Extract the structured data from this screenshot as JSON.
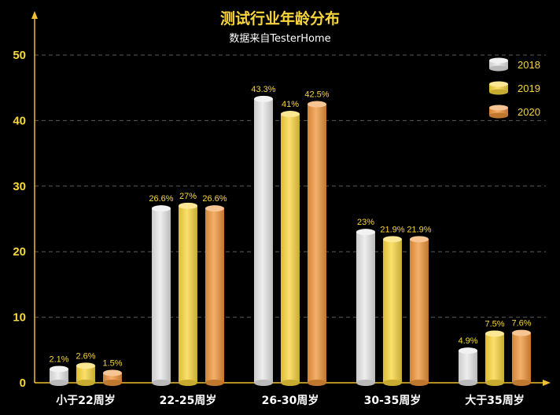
{
  "chart_data": {
    "type": "bar",
    "title": "测试行业年龄分布",
    "subtitle": "数据来自TesterHome",
    "categories": [
      "小于22周岁",
      "22-25周岁",
      "26-30周岁",
      "30-35周岁",
      "大于35周岁"
    ],
    "series": [
      {
        "name": "2018",
        "values": [
          2.1,
          26.6,
          43.3,
          23,
          4.9
        ],
        "labels": [
          "2.1%",
          "26.6%",
          "43.3%",
          "23%",
          "4.9%"
        ],
        "color": "#e8e8e8"
      },
      {
        "name": "2019",
        "values": [
          2.6,
          27,
          41,
          21.9,
          7.5
        ],
        "labels": [
          "2.6%",
          "27%",
          "41%",
          "21.9%",
          "7.5%"
        ],
        "color": "#f9d63c"
      },
      {
        "name": "2020",
        "values": [
          1.5,
          26.6,
          42.5,
          21.9,
          7.6
        ],
        "labels": [
          "1.5%",
          "26.6%",
          "42.5%",
          "21.9%",
          "7.6%"
        ],
        "color": "#f0953a"
      }
    ],
    "yticks": [
      0,
      10,
      20,
      30,
      40,
      50
    ],
    "ylim": [
      0,
      50
    ],
    "grid": true,
    "legend_position": "top-right",
    "colors": {
      "axis": "#f0c030",
      "grid": "#5a5a5a",
      "text": "#ffffff",
      "accent_text": "#f9d63c"
    }
  }
}
